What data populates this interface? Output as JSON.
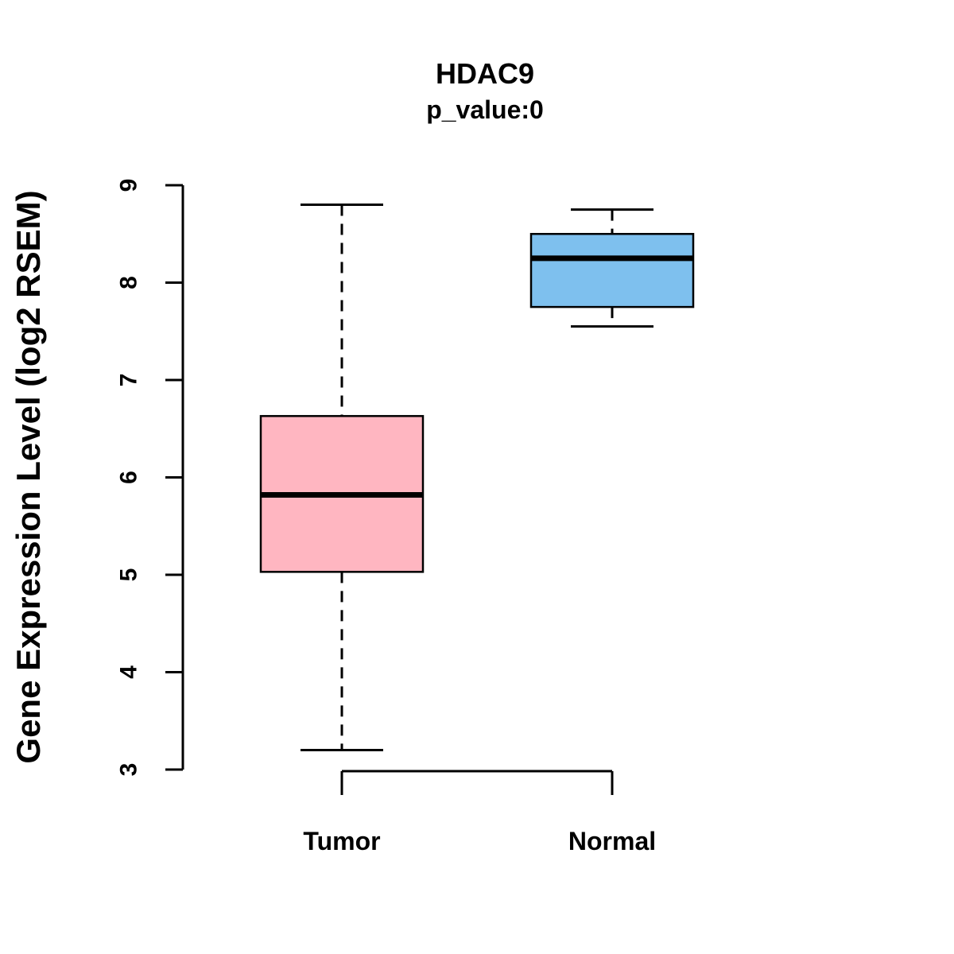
{
  "title": "HDAC9",
  "subtitle": "p_value:0",
  "ylabel": "Gene Expression Level (log2 RSEM)",
  "chart_data": {
    "type": "box",
    "title": "HDAC9",
    "subtitle": "p_value:0",
    "xlabel": "",
    "ylabel": "Gene Expression Level (log2 RSEM)",
    "ylim": [
      3,
      9
    ],
    "y_ticks": [
      3,
      4,
      5,
      6,
      7,
      8,
      9
    ],
    "grid": false,
    "legend": "none",
    "categories": [
      "Tumor",
      "Normal"
    ],
    "series": [
      {
        "name": "Tumor",
        "low": 3.2,
        "q1": 5.03,
        "median": 5.82,
        "q3": 6.63,
        "high": 8.8,
        "color": "#FFB6C1"
      },
      {
        "name": "Normal",
        "low": 7.55,
        "q1": 7.75,
        "median": 8.25,
        "q3": 8.5,
        "high": 8.75,
        "color": "#7EC0EE"
      }
    ]
  }
}
